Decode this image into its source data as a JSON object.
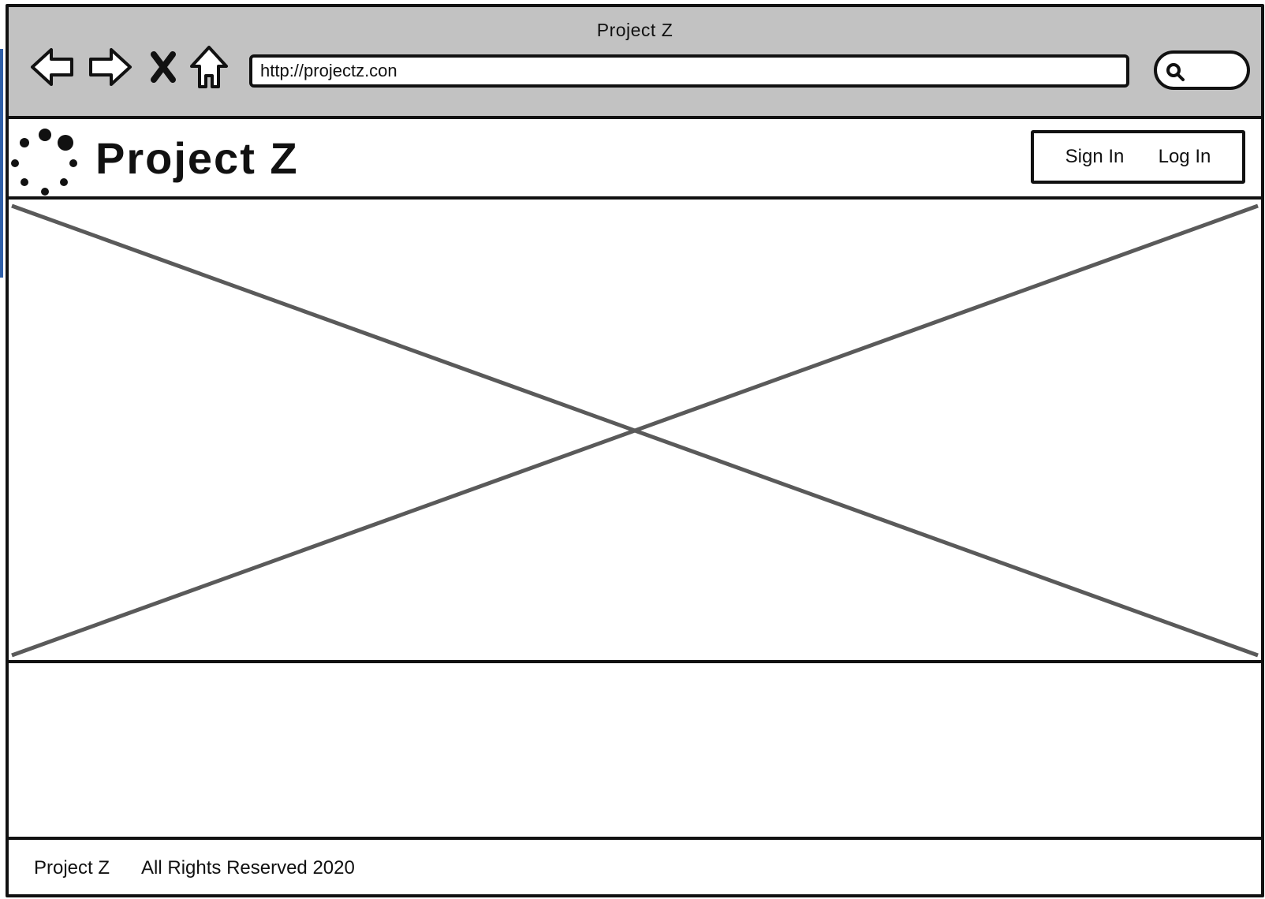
{
  "browser": {
    "window_title": "Project Z",
    "url": "http://projectz.con",
    "nav_icons": [
      "back-arrow-icon",
      "forward-arrow-icon",
      "stop-icon",
      "home-icon"
    ],
    "search_icon": "search-icon"
  },
  "header": {
    "logo_icon": "loading-dots-icon",
    "brand": "Project Z",
    "auth": {
      "sign_in": "Sign In",
      "log_in": "Log In"
    }
  },
  "hero": {
    "placeholder_icon": "image-placeholder-icon"
  },
  "footer": {
    "brand": "Project Z",
    "copyright": "All Rights Reserved 2020"
  },
  "colors": {
    "chrome_bg": "#c2c2c2",
    "stroke": "#111111",
    "placeholder_stroke": "#5a5a5a",
    "left_accent": "#2f5fa8"
  }
}
